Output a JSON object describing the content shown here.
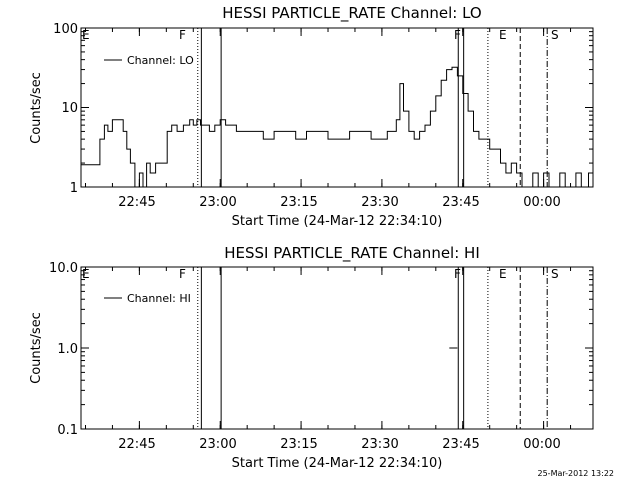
{
  "chart_data": [
    {
      "type": "line",
      "title": "HESSI PARTICLE_RATE Channel: LO",
      "ylabel": "Counts/sec",
      "xlabel": "Start Time (24-Mar-12 22:34:10)",
      "y_scale": "log",
      "ylim": [
        1,
        100
      ],
      "xlim": [
        "22:34:10",
        "00:09:10"
      ],
      "ytick_labels": [
        "1",
        "10",
        "100"
      ],
      "xtick_labels": [
        "22:45",
        "23:00",
        "23:15",
        "23:30",
        "23:45",
        "00:00"
      ],
      "series": [
        {
          "name": "Channel: LO",
          "color": "#000000",
          "x": [
            "22:34:10",
            "22:37:00",
            "22:37:40",
            "22:38:30",
            "22:39:10",
            "22:40:00",
            "22:41:00",
            "22:42:00",
            "22:42:40",
            "22:43:20",
            "22:44:10",
            "22:45:00",
            "22:45:40",
            "22:46:20",
            "22:47:00",
            "22:48:00",
            "22:49:20",
            "22:50:10",
            "22:51:00",
            "22:52:00",
            "22:53:10",
            "22:54:20",
            "22:55:00",
            "22:55:40",
            "22:56:20",
            "22:57:10",
            "22:58:00",
            "22:59:00",
            "23:00:00",
            "23:01:00",
            "23:02:00",
            "23:03:00",
            "23:04:00",
            "23:06:00",
            "23:08:00",
            "23:10:00",
            "23:12:00",
            "23:14:00",
            "23:16:00",
            "23:18:00",
            "23:20:00",
            "23:22:00",
            "23:24:00",
            "23:26:00",
            "23:28:00",
            "23:30:00",
            "23:31:00",
            "23:32:00",
            "23:32:40",
            "23:33:20",
            "23:34:00",
            "23:35:00",
            "23:36:00",
            "23:37:00",
            "23:38:00",
            "23:39:00",
            "23:40:00",
            "23:41:00",
            "23:42:00",
            "23:43:00",
            "23:44:00",
            "23:45:00",
            "23:46:00",
            "23:47:00",
            "23:48:00",
            "23:49:00",
            "23:50:00",
            "23:51:00",
            "23:52:00",
            "23:53:00",
            "23:54:00",
            "23:55:00",
            "23:56:00",
            "23:57:00",
            "23:58:00",
            "23:59:00",
            "00:00:00",
            "00:01:00",
            "00:02:00",
            "00:03:00",
            "00:04:00",
            "00:05:00",
            "00:06:00",
            "00:07:00",
            "00:07:40",
            "00:08:20",
            "00:09:10"
          ],
          "y": [
            1.9,
            1.9,
            4,
            6,
            5,
            7,
            7,
            5,
            3,
            2,
            1,
            1.5,
            1,
            2,
            1.5,
            2,
            2,
            5,
            6,
            5,
            6,
            7,
            6,
            7,
            6,
            6,
            5,
            6,
            7,
            6,
            6,
            5,
            5,
            5,
            4,
            5,
            5,
            4,
            5,
            5,
            4,
            4,
            5,
            5,
            4,
            4,
            5,
            5,
            7,
            20,
            9,
            5,
            4,
            5,
            6,
            9,
            14,
            22,
            30,
            32,
            25,
            15,
            9,
            5,
            4,
            4,
            3,
            3,
            2,
            1.5,
            2,
            1.5,
            1,
            1,
            1.5,
            1,
            1.5,
            1,
            1,
            1.5,
            1,
            1,
            1.5,
            1,
            1,
            1.5,
            2.5
          ]
        }
      ],
      "annotations": [
        {
          "time": "22:55:50",
          "style": "dotted",
          "label": ""
        },
        {
          "time": "22:56:30",
          "style": "solid",
          "label": "F"
        },
        {
          "time": "23:00:10",
          "style": "solid",
          "label": ""
        },
        {
          "time": "23:44:10",
          "style": "solid",
          "label": "F"
        },
        {
          "time": "23:45:10",
          "style": "solid",
          "label": ""
        },
        {
          "time": "23:49:40",
          "style": "dotted",
          "label": "E"
        },
        {
          "time": "23:55:40",
          "style": "dashed",
          "label": "S"
        },
        {
          "time": "00:00:40",
          "style": "dashdot",
          "label": ""
        }
      ],
      "left_marker_label": "E"
    },
    {
      "type": "line",
      "title": "HESSI PARTICLE_RATE Channel: HI",
      "ylabel": "Counts/sec",
      "xlabel": "Start Time (24-Mar-12 22:34:10)",
      "y_scale": "log",
      "ylim": [
        0.1,
        10
      ],
      "xlim": [
        "22:34:10",
        "00:09:10"
      ],
      "ytick_labels": [
        "0.1",
        "1.0",
        "10.0"
      ],
      "xtick_labels": [
        "22:45",
        "23:00",
        "23:15",
        "23:30",
        "23:45",
        "00:00"
      ],
      "series": [
        {
          "name": "Channel: HI",
          "color": "#000000",
          "x": [
            "23:42:30",
            "23:42:50",
            "23:43:10",
            "23:44:00"
          ],
          "y": [
            1.0,
            1.0,
            1.0,
            1.0
          ]
        }
      ],
      "annotations": [
        {
          "time": "22:55:50",
          "style": "dotted",
          "label": ""
        },
        {
          "time": "22:56:30",
          "style": "solid",
          "label": "F"
        },
        {
          "time": "23:00:10",
          "style": "solid",
          "label": ""
        },
        {
          "time": "23:44:10",
          "style": "solid",
          "label": "F"
        },
        {
          "time": "23:45:10",
          "style": "solid",
          "label": ""
        },
        {
          "time": "23:49:40",
          "style": "dotted",
          "label": "E"
        },
        {
          "time": "23:55:40",
          "style": "dashed",
          "label": "S"
        },
        {
          "time": "00:00:40",
          "style": "dashdot",
          "label": ""
        }
      ],
      "left_marker_label": "E"
    }
  ],
  "footer": {
    "timestamp": "25-Mar-2012 13:22"
  }
}
